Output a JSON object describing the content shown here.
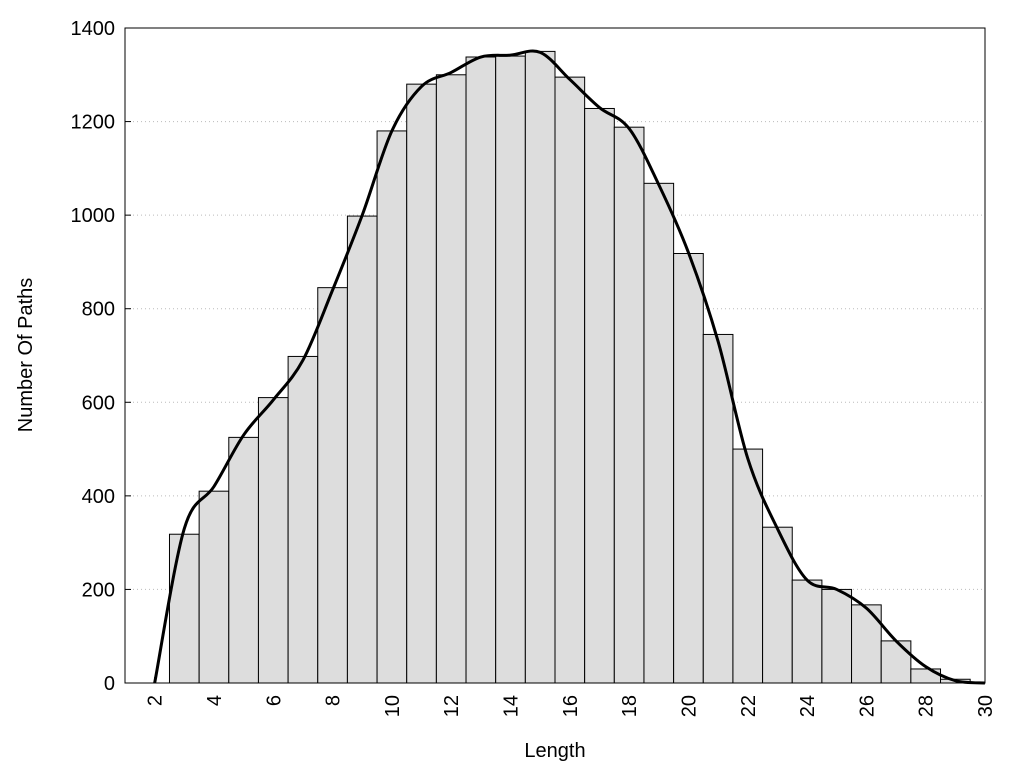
{
  "chart_data": {
    "type": "histogram",
    "xlabel": "Length",
    "ylabel": "Number Of Paths",
    "bins": [
      2.5,
      3.5,
      4.5,
      5.5,
      6.5,
      7.5,
      8.5,
      9.5,
      10.5,
      11.5,
      12.5,
      13.5,
      14.5,
      15.5,
      16.5,
      17.5,
      18.5,
      19.5,
      20.5,
      21.5,
      22.5,
      23.5,
      24.5,
      25.5,
      26.5,
      27.5,
      28.5,
      29.5
    ],
    "counts": [
      318,
      410,
      525,
      610,
      698,
      845,
      998,
      1180,
      1280,
      1300,
      1338,
      1340,
      1350,
      1295,
      1228,
      1188,
      1068,
      918,
      745,
      500,
      333,
      220,
      200,
      167,
      90,
      30,
      8
    ],
    "bar_color": "#dddddd",
    "curve": {
      "x": [
        2,
        3,
        4,
        5,
        6,
        7,
        8,
        9,
        10,
        11,
        12,
        13,
        14,
        15,
        16,
        17,
        18,
        19,
        20,
        21,
        22,
        23,
        24,
        25,
        26,
        27,
        28,
        29,
        30
      ],
      "values": [
        0,
        330,
        420,
        530,
        605,
        690,
        840,
        1000,
        1180,
        1275,
        1305,
        1338,
        1342,
        1348,
        1290,
        1230,
        1185,
        1065,
        920,
        730,
        480,
        330,
        220,
        200,
        160,
        90,
        35,
        5,
        0
      ],
      "color": "#000000"
    },
    "xlim": [
      1,
      30
    ],
    "ylim": [
      0,
      1400
    ],
    "xticks": [
      2,
      4,
      6,
      8,
      10,
      12,
      14,
      16,
      18,
      20,
      22,
      24,
      26,
      28,
      30
    ],
    "yticks": [
      0,
      200,
      400,
      600,
      800,
      1000,
      1200,
      1400
    ],
    "grid": true
  }
}
